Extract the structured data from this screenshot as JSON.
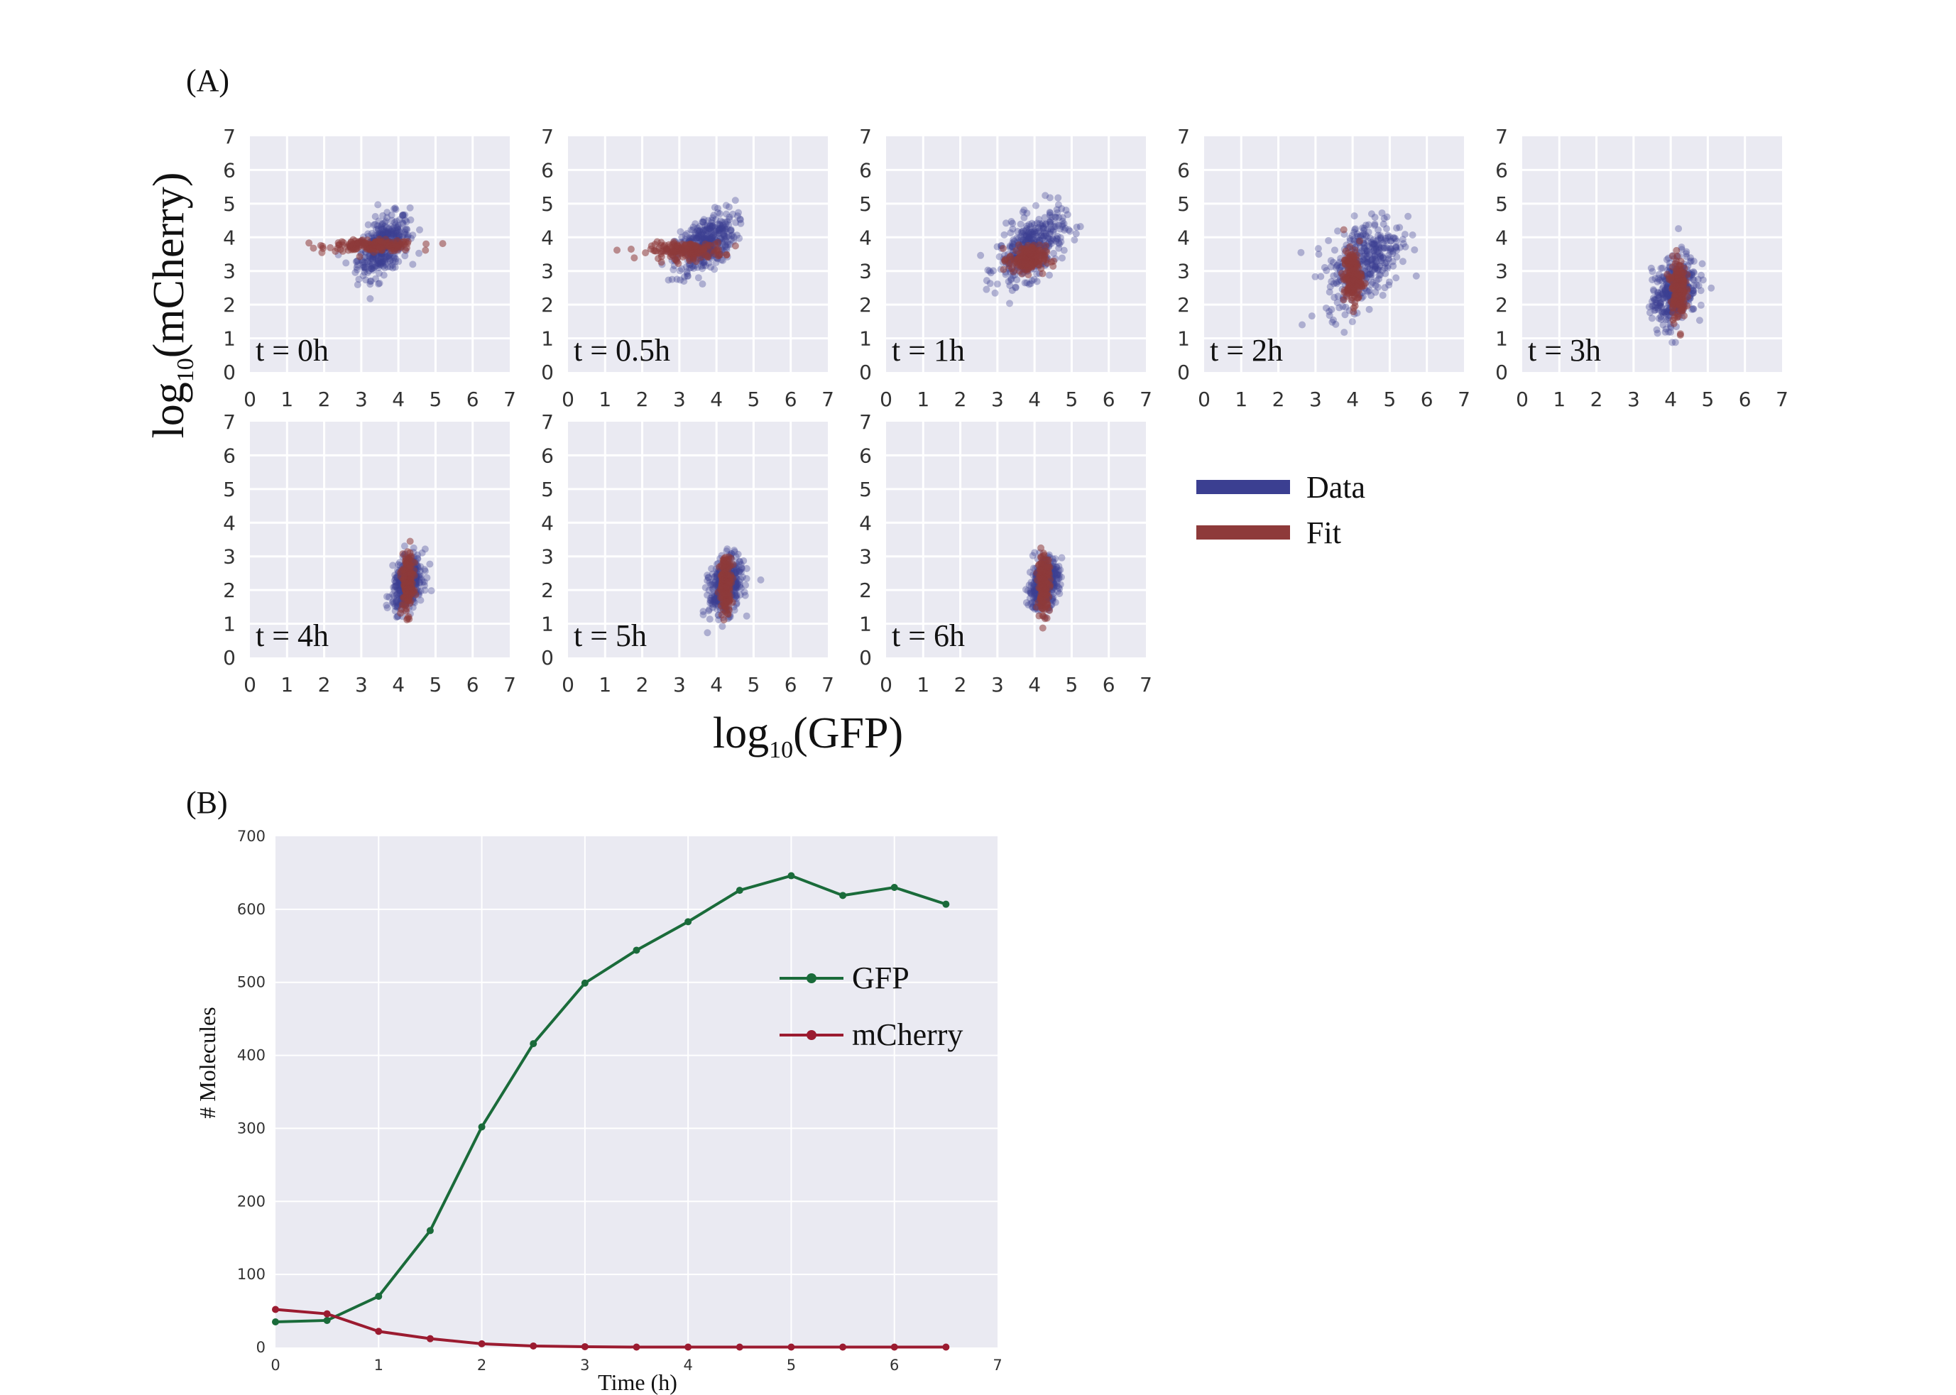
{
  "figure": {
    "panel_a_label": "(A)",
    "panel_b_label": "(B)"
  },
  "colors": {
    "panel_bg": "#eaeaf2",
    "grid": "#ffffff",
    "data": "#3b3f91",
    "fit": "#8e3a3a",
    "gfp": "#1a6b3a",
    "mcherry": "#9b1b30"
  },
  "chart_data": [
    {
      "type": "scatter",
      "panel": "A",
      "xlabel_base": "log",
      "xlabel_sub": "10",
      "xlabel_rest": "(GFP)",
      "ylabel_base": "log",
      "ylabel_sub": "10",
      "ylabel_rest": "(mCherry)",
      "xlim": [
        0,
        7
      ],
      "ylim": [
        0,
        7
      ],
      "ticks": [
        "0",
        "1",
        "2",
        "3",
        "4",
        "5",
        "6",
        "7"
      ],
      "grid": true,
      "legend": {
        "position": "right",
        "entries": [
          "Data",
          "Fit"
        ]
      },
      "series_names": [
        "Data",
        "Fit"
      ],
      "subplots": [
        {
          "label": "t = 0h",
          "data_center": [
            3.6,
            3.75
          ],
          "data_spread": [
            0.35,
            0.4
          ],
          "fit_center": [
            3.3,
            3.75
          ],
          "fit_spread": [
            0.6,
            0.08
          ]
        },
        {
          "label": "t = 0.5h",
          "data_center": [
            3.7,
            3.8
          ],
          "data_spread": [
            0.4,
            0.4
          ],
          "fit_center": [
            3.2,
            3.6
          ],
          "fit_spread": [
            0.5,
            0.12
          ]
        },
        {
          "label": "t = 1h",
          "data_center": [
            3.9,
            3.7
          ],
          "data_spread": [
            0.45,
            0.45
          ],
          "fit_center": [
            3.8,
            3.35
          ],
          "fit_spread": [
            0.25,
            0.2
          ]
        },
        {
          "label": "t = 2h",
          "data_center": [
            4.3,
            3.3
          ],
          "data_spread": [
            0.5,
            0.6
          ],
          "fit_center": [
            4.0,
            2.8
          ],
          "fit_spread": [
            0.12,
            0.4
          ]
        },
        {
          "label": "t = 3h",
          "data_center": [
            4.1,
            2.4
          ],
          "data_spread": [
            0.3,
            0.5
          ],
          "fit_center": [
            4.2,
            2.5
          ],
          "fit_spread": [
            0.1,
            0.45
          ]
        },
        {
          "label": "t = 4h",
          "data_center": [
            4.25,
            2.2
          ],
          "data_spread": [
            0.2,
            0.35
          ],
          "fit_center": [
            4.25,
            2.2
          ],
          "fit_spread": [
            0.08,
            0.45
          ]
        },
        {
          "label": "t = 5h",
          "data_center": [
            4.25,
            2.1
          ],
          "data_spread": [
            0.22,
            0.4
          ],
          "fit_center": [
            4.25,
            2.2
          ],
          "fit_spread": [
            0.08,
            0.4
          ]
        },
        {
          "label": "t = 6h",
          "data_center": [
            4.25,
            2.2
          ],
          "data_spread": [
            0.2,
            0.35
          ],
          "fit_center": [
            4.25,
            2.2
          ],
          "fit_spread": [
            0.08,
            0.4
          ]
        }
      ]
    },
    {
      "type": "line",
      "panel": "B",
      "xlabel": "Time (h)",
      "ylabel": "# Molecules",
      "xlim": [
        0,
        7
      ],
      "ylim": [
        0,
        700
      ],
      "xticks": [
        "0",
        "1",
        "2",
        "3",
        "4",
        "5",
        "6",
        "7"
      ],
      "yticks": [
        "0",
        "100",
        "200",
        "300",
        "400",
        "500",
        "600",
        "700"
      ],
      "grid": true,
      "legend": {
        "position": "right"
      },
      "x": [
        0,
        0.5,
        1,
        1.5,
        2,
        2.5,
        3,
        3.5,
        4,
        4.5,
        5,
        5.5,
        6,
        6.5
      ],
      "series": [
        {
          "name": "GFP",
          "values": [
            35,
            37,
            70,
            160,
            302,
            416,
            499,
            544,
            583,
            626,
            646,
            619,
            630,
            607
          ]
        },
        {
          "name": "mCherry",
          "values": [
            52,
            46,
            22,
            12,
            5,
            2,
            1,
            0.5,
            0.5,
            0.5,
            0.5,
            0.5,
            0.5,
            0.5
          ]
        }
      ]
    }
  ]
}
